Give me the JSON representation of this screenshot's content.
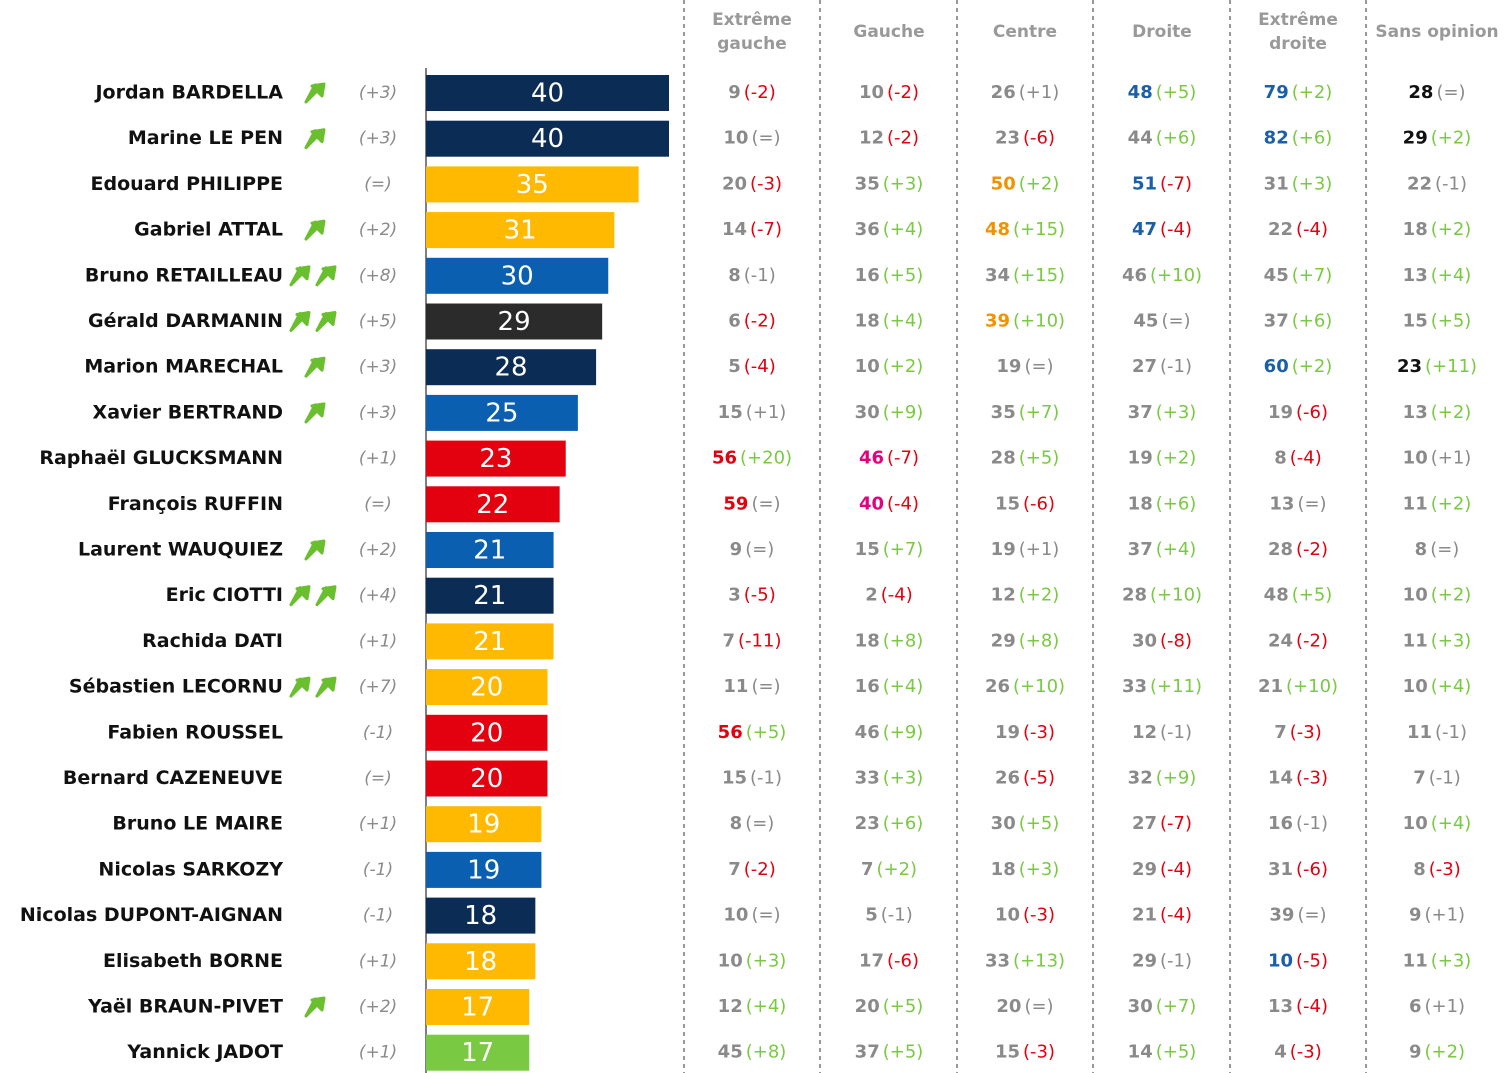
{
  "chart_data": {
    "type": "bar",
    "categories": [
      "Jordan BARDELLA",
      "Marine LE PEN",
      "Edouard PHILIPPE",
      "Gabriel ATTAL",
      "Bruno RETAILLEAU",
      "Gérald DARMANIN",
      "Marion MARECHAL",
      "Xavier BERTRAND",
      "Raphaël GLUCKSMANN",
      "François RUFFIN",
      "Laurent WAUQUIEZ",
      "Eric CIOTTI",
      "Rachida DATI",
      "Sébastien LECORNU",
      "Fabien ROUSSEL",
      "Bernard CAZENEUVE",
      "Bruno LE MAIRE",
      "Nicolas SARKOZY",
      "Nicolas DUPONT-AIGNAN",
      "Elisabeth BORNE",
      "Yaël BRAUN-PIVET",
      "Yannick JADOT"
    ],
    "values": [
      40,
      40,
      35,
      31,
      30,
      29,
      28,
      25,
      23,
      22,
      21,
      21,
      21,
      20,
      20,
      20,
      19,
      19,
      18,
      18,
      17,
      17
    ],
    "colors": [
      "#0b2d55",
      "#0b2d55",
      "#ffb900",
      "#ffb900",
      "#0a5fb0",
      "#2b2b2b",
      "#0b2d55",
      "#0a5fb0",
      "#e3000f",
      "#e3000f",
      "#0a5fb0",
      "#0b2d55",
      "#ffb900",
      "#ffb900",
      "#e3000f",
      "#e3000f",
      "#ffb900",
      "#0a5fb0",
      "#0b2d55",
      "#ffb900",
      "#ffb900",
      "#7ac943"
    ],
    "changes": [
      "(+3)",
      "(+3)",
      "(=)",
      "(+2)",
      "(+8)",
      "(+5)",
      "(+3)",
      "(+3)",
      "(+1)",
      "(=)",
      "(+2)",
      "(+4)",
      "(+1)",
      "(+7)",
      "(-1)",
      "(=)",
      "(+1)",
      "(-1)",
      "(-1)",
      "(+1)",
      "(+2)",
      "(+1)"
    ],
    "arrows": [
      1,
      1,
      0,
      1,
      2,
      2,
      1,
      1,
      0,
      0,
      1,
      2,
      0,
      2,
      0,
      0,
      0,
      0,
      0,
      0,
      1,
      0
    ],
    "arrow_color": "#6abf2e"
  },
  "table": {
    "columns": [
      [
        "Extrême",
        "gauche"
      ],
      [
        "Gauche"
      ],
      [
        "Centre"
      ],
      [
        "Droite"
      ],
      [
        "Extrême",
        "droite"
      ],
      [
        "Sans opinion"
      ]
    ],
    "rows": [
      [
        [
          9,
          "(-2)"
        ],
        [
          10,
          "(-2)"
        ],
        [
          26,
          "(+1)"
        ],
        [
          48,
          "(+5)",
          "#1a5fa8"
        ],
        [
          79,
          "(+2)",
          "#1a5fa8"
        ],
        [
          28,
          "(=)",
          "#111111"
        ]
      ],
      [
        [
          10,
          "(=)"
        ],
        [
          12,
          "(-2)"
        ],
        [
          23,
          "(-6)"
        ],
        [
          44,
          "(+6)"
        ],
        [
          82,
          "(+6)",
          "#1a5fa8"
        ],
        [
          29,
          "(+2)",
          "#111111"
        ]
      ],
      [
        [
          20,
          "(-3)"
        ],
        [
          35,
          "(+3)"
        ],
        [
          50,
          "(+2)",
          "#f39200"
        ],
        [
          51,
          "(-7)",
          "#1a5fa8"
        ],
        [
          31,
          "(+3)"
        ],
        [
          22,
          "(-1)"
        ]
      ],
      [
        [
          14,
          "(-7)"
        ],
        [
          36,
          "(+4)"
        ],
        [
          48,
          "(+15)",
          "#f39200"
        ],
        [
          47,
          "(-4)",
          "#1a5fa8"
        ],
        [
          22,
          "(-4)"
        ],
        [
          18,
          "(+2)"
        ]
      ],
      [
        [
          8,
          "(-1)"
        ],
        [
          16,
          "(+5)"
        ],
        [
          34,
          "(+15)"
        ],
        [
          46,
          "(+10)"
        ],
        [
          45,
          "(+7)"
        ],
        [
          13,
          "(+4)"
        ]
      ],
      [
        [
          6,
          "(-2)"
        ],
        [
          18,
          "(+4)"
        ],
        [
          39,
          "(+10)",
          "#f39200"
        ],
        [
          45,
          "(=)"
        ],
        [
          37,
          "(+6)"
        ],
        [
          15,
          "(+5)"
        ]
      ],
      [
        [
          5,
          "(-4)"
        ],
        [
          10,
          "(+2)"
        ],
        [
          19,
          "(=)"
        ],
        [
          27,
          "(-1)"
        ],
        [
          60,
          "(+2)",
          "#1a5fa8"
        ],
        [
          23,
          "(+11)",
          "#111111"
        ]
      ],
      [
        [
          15,
          "(+1)"
        ],
        [
          30,
          "(+9)"
        ],
        [
          35,
          "(+7)"
        ],
        [
          37,
          "(+3)"
        ],
        [
          19,
          "(-6)"
        ],
        [
          13,
          "(+2)"
        ]
      ],
      [
        [
          56,
          "(+20)",
          "#e3000f"
        ],
        [
          46,
          "(-7)",
          "#e6007e"
        ],
        [
          28,
          "(+5)"
        ],
        [
          19,
          "(+2)"
        ],
        [
          8,
          "(-4)"
        ],
        [
          10,
          "(+1)"
        ]
      ],
      [
        [
          59,
          "(=)",
          "#e3000f"
        ],
        [
          40,
          "(-4)",
          "#e6007e"
        ],
        [
          15,
          "(-6)"
        ],
        [
          18,
          "(+6)"
        ],
        [
          13,
          "(=)"
        ],
        [
          11,
          "(+2)"
        ]
      ],
      [
        [
          9,
          "(=)"
        ],
        [
          15,
          "(+7)"
        ],
        [
          19,
          "(+1)"
        ],
        [
          37,
          "(+4)"
        ],
        [
          28,
          "(-2)"
        ],
        [
          8,
          "(=)"
        ]
      ],
      [
        [
          3,
          "(-5)"
        ],
        [
          2,
          "(-4)"
        ],
        [
          12,
          "(+2)"
        ],
        [
          28,
          "(+10)"
        ],
        [
          48,
          "(+5)"
        ],
        [
          10,
          "(+2)"
        ]
      ],
      [
        [
          7,
          "(-11)"
        ],
        [
          18,
          "(+8)"
        ],
        [
          29,
          "(+8)"
        ],
        [
          30,
          "(-8)"
        ],
        [
          24,
          "(-2)"
        ],
        [
          11,
          "(+3)"
        ]
      ],
      [
        [
          11,
          "(=)"
        ],
        [
          16,
          "(+4)"
        ],
        [
          26,
          "(+10)"
        ],
        [
          33,
          "(+11)"
        ],
        [
          21,
          "(+10)"
        ],
        [
          10,
          "(+4)"
        ]
      ],
      [
        [
          56,
          "(+5)",
          "#e3000f"
        ],
        [
          46,
          "(+9)"
        ],
        [
          19,
          "(-3)"
        ],
        [
          12,
          "(-1)"
        ],
        [
          7,
          "(-3)"
        ],
        [
          11,
          "(-1)"
        ]
      ],
      [
        [
          15,
          "(-1)"
        ],
        [
          33,
          "(+3)"
        ],
        [
          26,
          "(-5)"
        ],
        [
          32,
          "(+9)"
        ],
        [
          14,
          "(-3)"
        ],
        [
          7,
          "(-1)"
        ]
      ],
      [
        [
          8,
          "(=)"
        ],
        [
          23,
          "(+6)"
        ],
        [
          30,
          "(+5)"
        ],
        [
          27,
          "(-7)"
        ],
        [
          16,
          "(-1)"
        ],
        [
          10,
          "(+4)"
        ]
      ],
      [
        [
          7,
          "(-2)"
        ],
        [
          7,
          "(+2)"
        ],
        [
          18,
          "(+3)"
        ],
        [
          29,
          "(-4)"
        ],
        [
          31,
          "(-6)"
        ],
        [
          8,
          "(-3)"
        ]
      ],
      [
        [
          10,
          "(=)"
        ],
        [
          5,
          "(-1)"
        ],
        [
          10,
          "(-3)"
        ],
        [
          21,
          "(-4)"
        ],
        [
          39,
          "(=)"
        ],
        [
          9,
          "(+1)"
        ]
      ],
      [
        [
          10,
          "(+3)"
        ],
        [
          17,
          "(-6)"
        ],
        [
          33,
          "(+13)"
        ],
        [
          29,
          "(-1)"
        ],
        [
          10,
          "(-5)",
          "#1a5fa8"
        ],
        [
          11,
          "(+3)"
        ]
      ],
      [
        [
          12,
          "(+4)"
        ],
        [
          20,
          "(+5)"
        ],
        [
          20,
          "(=)"
        ],
        [
          30,
          "(+7)"
        ],
        [
          13,
          "(-4)"
        ],
        [
          6,
          "(+1)"
        ]
      ],
      [
        [
          45,
          "(+8)"
        ],
        [
          37,
          "(+5)"
        ],
        [
          15,
          "(-3)"
        ],
        [
          14,
          "(+5)"
        ],
        [
          4,
          "(-3)"
        ],
        [
          9,
          "(+2)"
        ]
      ]
    ]
  }
}
